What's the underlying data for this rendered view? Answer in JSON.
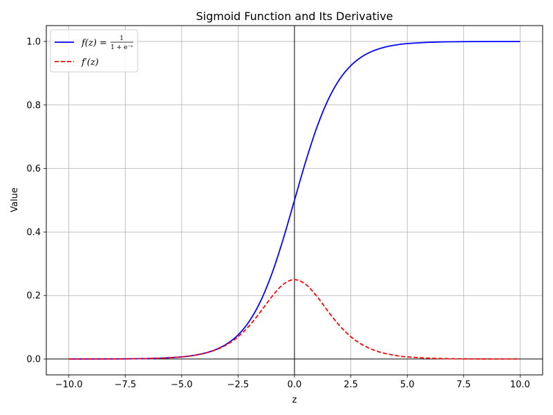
{
  "chart_data": {
    "type": "line",
    "title": "Sigmoid Function and Its Derivative",
    "xlabel": "z",
    "ylabel": "Value",
    "xlim": [
      -11,
      11
    ],
    "ylim": [
      -0.05,
      1.05
    ],
    "xticks": [
      -10.0,
      -7.5,
      -5.0,
      -2.5,
      0.0,
      2.5,
      5.0,
      7.5,
      10.0
    ],
    "xtick_labels": [
      "−10.0",
      "−7.5",
      "−5.0",
      "−2.5",
      "0.0",
      "2.5",
      "5.0",
      "7.5",
      "10.0"
    ],
    "yticks": [
      0.0,
      0.2,
      0.4,
      0.6,
      0.8,
      1.0
    ],
    "ytick_labels": [
      "0.0",
      "0.2",
      "0.4",
      "0.6",
      "0.8",
      "1.0"
    ],
    "grid": true,
    "reference_lines": {
      "x0": true,
      "y0": true,
      "color": "#000000"
    },
    "legend": {
      "position": "top-left",
      "entries": [
        {
          "series": 0,
          "label_main": "f(z) =",
          "label_fraction_num": "1",
          "label_fraction_den": "1 + e⁻ᶻ"
        },
        {
          "series": 1,
          "label_main": "f′(z)"
        }
      ]
    },
    "series": [
      {
        "color": "#0000ff",
        "linestyle": "solid",
        "x": [
          -10,
          -9,
          -8,
          -7,
          -6,
          -5,
          -4.5,
          -4,
          -3.5,
          -3,
          -2.5,
          -2,
          -1.5,
          -1,
          -0.5,
          0,
          0.5,
          1,
          1.5,
          2,
          2.5,
          3,
          3.5,
          4,
          4.5,
          5,
          6,
          7,
          8,
          9,
          10
        ],
        "y": [
          4.54e-05,
          0.000123,
          0.000335,
          0.000911,
          0.00247,
          0.00669,
          0.011,
          0.018,
          0.0293,
          0.0474,
          0.0759,
          0.1192,
          0.1824,
          0.2689,
          0.3775,
          0.5,
          0.6225,
          0.7311,
          0.8176,
          0.8808,
          0.9241,
          0.9526,
          0.9707,
          0.982,
          0.989,
          0.9933,
          0.9975,
          0.9991,
          0.99966,
          0.99988,
          0.99995
        ]
      },
      {
        "color": "#ff0000",
        "linestyle": "dashed",
        "x": [
          -10,
          -9,
          -8,
          -7,
          -6,
          -5,
          -4.5,
          -4,
          -3.5,
          -3,
          -2.5,
          -2,
          -1.5,
          -1,
          -0.5,
          0,
          0.5,
          1,
          1.5,
          2,
          2.5,
          3,
          3.5,
          4,
          4.5,
          5,
          6,
          7,
          8,
          9,
          10
        ],
        "y": [
          4.54e-05,
          0.000123,
          0.000335,
          0.00091,
          0.00247,
          0.00665,
          0.0109,
          0.0177,
          0.0285,
          0.0452,
          0.0701,
          0.105,
          0.1491,
          0.1966,
          0.235,
          0.25,
          0.235,
          0.1966,
          0.1491,
          0.105,
          0.0701,
          0.0452,
          0.0285,
          0.0177,
          0.0109,
          0.00665,
          0.00247,
          0.00091,
          0.000335,
          0.000123,
          4.54e-05
        ]
      }
    ]
  }
}
